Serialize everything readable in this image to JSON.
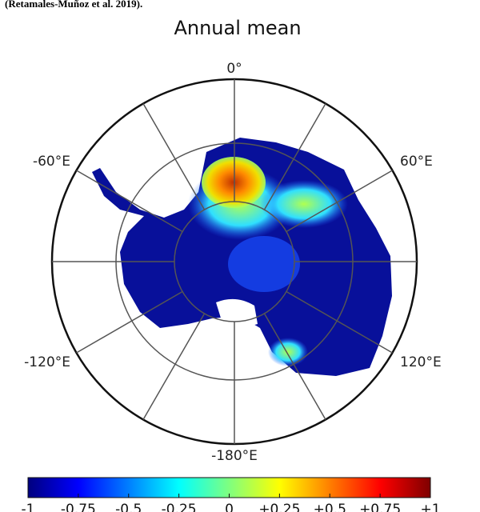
{
  "caption": "(Retamales-Muñoz et al. 2019).",
  "title": "Annual mean",
  "longitude_labels": {
    "north": "0°",
    "upper_right": "60°E",
    "lower_right": "120°E",
    "bottom": "-180°E",
    "lower_left": "-120°E",
    "upper_left": "-60°E"
  },
  "colorbar": {
    "range": [
      -1,
      1
    ],
    "colors": [
      "#00007f",
      "#0000ff",
      "#007fff",
      "#00ffff",
      "#7fff7f",
      "#ffff00",
      "#ff7f00",
      "#ff0000",
      "#7f0000"
    ],
    "ticks": [
      -1,
      {
        "value": -0.75,
        "label": "-0.75"
      },
      {
        "value": -0.5,
        "label": "-0.5"
      },
      {
        "value": -0.25,
        "label": "-0.25"
      },
      0,
      {
        "value": 0.25,
        "label": "+0.25"
      },
      {
        "value": 0.5,
        "label": "+0.5"
      },
      {
        "value": 0.75,
        "label": "+0.75"
      },
      {
        "value": 1,
        "label": "+1"
      }
    ]
  }
}
